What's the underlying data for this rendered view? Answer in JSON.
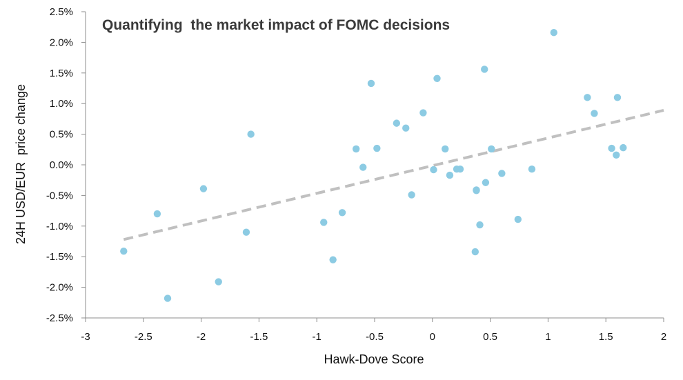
{
  "chart_data": {
    "type": "scatter",
    "title": "Quantifying  the market impact of FOMC decisions",
    "xlabel": "Hawk-Dove Score",
    "ylabel": "24H USD/EUR  price change",
    "xlim": [
      -3,
      2
    ],
    "ylim": [
      -2.5,
      2.5
    ],
    "x_ticks": [
      -3,
      -2.5,
      -2,
      -1.5,
      -1,
      -0.5,
      0,
      0.5,
      1,
      1.5,
      2
    ],
    "x_tick_labels": [
      "-3",
      "-2.5",
      "-2",
      "-1.5",
      "-1",
      "-0.5",
      "0",
      "0.5",
      "1",
      "1.5",
      "2"
    ],
    "y_ticks": [
      -2.5,
      -2.0,
      -1.5,
      -1.0,
      -0.5,
      0.0,
      0.5,
      1.0,
      1.5,
      2.0,
      2.5
    ],
    "y_tick_labels": [
      "-2.5%",
      "-2.0%",
      "-1.5%",
      "-1.0%",
      "-0.5%",
      "0.0%",
      "0.5%",
      "1.0%",
      "1.5%",
      "2.0%",
      "2.5%"
    ],
    "grid": false,
    "series": [
      {
        "points": [
          [
            -2.67,
            -1.41
          ],
          [
            -2.38,
            -0.8
          ],
          [
            -2.29,
            -2.18
          ],
          [
            -1.98,
            -0.39
          ],
          [
            -1.85,
            -1.91
          ],
          [
            -1.61,
            -1.1
          ],
          [
            -1.57,
            0.5
          ],
          [
            -0.94,
            -0.94
          ],
          [
            -0.86,
            -1.55
          ],
          [
            -0.78,
            -0.78
          ],
          [
            -0.66,
            0.26
          ],
          [
            -0.6,
            -0.04
          ],
          [
            -0.53,
            1.33
          ],
          [
            -0.48,
            0.27
          ],
          [
            -0.31,
            0.68
          ],
          [
            -0.23,
            0.6
          ],
          [
            -0.18,
            -0.49
          ],
          [
            -0.08,
            0.85
          ],
          [
            0.01,
            -0.08
          ],
          [
            0.04,
            1.41
          ],
          [
            0.11,
            0.26
          ],
          [
            0.15,
            -0.17
          ],
          [
            0.21,
            -0.07
          ],
          [
            0.24,
            -0.07
          ],
          [
            0.37,
            -1.42
          ],
          [
            0.38,
            -0.41
          ],
          [
            0.38,
            -0.42
          ],
          [
            0.41,
            -0.98
          ],
          [
            0.45,
            1.56
          ],
          [
            0.46,
            -0.29
          ],
          [
            0.51,
            0.26
          ],
          [
            0.6,
            -0.14
          ],
          [
            0.74,
            -0.89
          ],
          [
            0.86,
            -0.07
          ],
          [
            1.05,
            2.16
          ],
          [
            1.34,
            1.1
          ],
          [
            1.4,
            0.84
          ],
          [
            1.55,
            0.27
          ],
          [
            1.59,
            0.16
          ],
          [
            1.6,
            1.1
          ],
          [
            1.65,
            0.28
          ]
        ]
      }
    ],
    "trendline": {
      "style": "dashed",
      "x": [
        -2.67,
        2.0
      ],
      "y": [
        -1.22,
        0.89
      ]
    },
    "colors": {
      "points": "#8ccbe3",
      "trendline": "#c0c0c0",
      "axis": "#8c8c8c"
    }
  }
}
